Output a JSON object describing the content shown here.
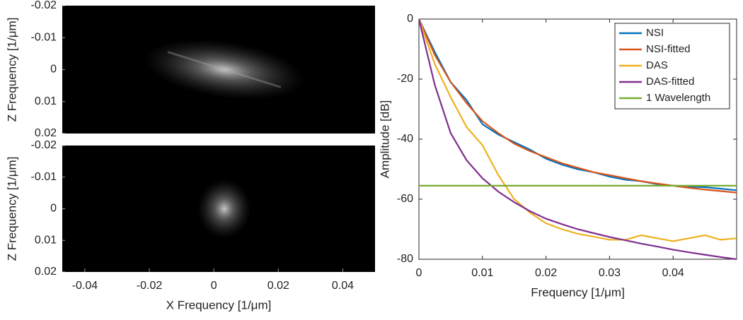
{
  "chart_data": [
    {
      "type": "image",
      "ylabel": "Z Frequency [1/μm]",
      "ylim": [
        -0.02,
        0.02
      ],
      "yticks": [
        -0.02,
        -0.01,
        0,
        0.01,
        0.02
      ]
    },
    {
      "type": "image",
      "ylabel": "Z Frequency [1/μm]",
      "ylim": [
        -0.02,
        0.02
      ],
      "yticks": [
        -0.02,
        -0.01,
        0,
        0.01,
        0.02
      ],
      "xlabel": "X Frequency [1/μm]",
      "xlim": [
        -0.047,
        0.05
      ],
      "xticks": [
        -0.04,
        -0.02,
        0,
        0.02,
        0.04
      ]
    },
    {
      "type": "line",
      "xlabel": "Frequency [1/μm]",
      "ylabel": "Amplitude [dB]",
      "xlim": [
        0,
        0.05
      ],
      "xticks": [
        0,
        0.01,
        0.02,
        0.03,
        0.04
      ],
      "ylim": [
        -80,
        0
      ],
      "yticks": [
        0,
        -20,
        -40,
        -60,
        -80
      ],
      "legend": "top-right",
      "x": [
        0,
        0.0025,
        0.005,
        0.0075,
        0.01,
        0.0125,
        0.015,
        0.0175,
        0.02,
        0.0225,
        0.025,
        0.0275,
        0.03,
        0.0325,
        0.035,
        0.0375,
        0.04,
        0.0425,
        0.045,
        0.0475,
        0.05
      ],
      "series": [
        {
          "name": "NSI",
          "color": "#0072BD",
          "values": [
            0,
            -11,
            -21,
            -27,
            -35,
            -38.5,
            -41,
            -43.5,
            -46.5,
            -48.5,
            -50,
            -51,
            -52.5,
            -53.5,
            -54,
            -55,
            -55.5,
            -55.8,
            -56,
            -56.5,
            -57
          ]
        },
        {
          "name": "NSI-fitted",
          "color": "#D95319",
          "values": [
            0,
            -12,
            -21,
            -28,
            -34,
            -38,
            -41.5,
            -44,
            -46,
            -48,
            -49.5,
            -51,
            -52,
            -53,
            -54,
            -54.8,
            -55.5,
            -56.2,
            -56.8,
            -57.3,
            -57.8
          ]
        },
        {
          "name": "DAS",
          "color": "#EDB120",
          "values": [
            0,
            -15,
            -26,
            -36,
            -42,
            -52,
            -60,
            -64.5,
            -68,
            -70,
            -71.5,
            -72.5,
            -73.5,
            -73.5,
            -72,
            -73,
            -74,
            -73,
            -72,
            -73.5,
            -73
          ]
        },
        {
          "name": "DAS-fitted",
          "color": "#7E2F8E",
          "values": [
            0,
            -22,
            -38,
            -47,
            -53,
            -57.5,
            -61,
            -64,
            -66.5,
            -68.3,
            -70,
            -71.3,
            -72.6,
            -73.7,
            -74.8,
            -75.8,
            -76.8,
            -77.7,
            -78.5,
            -79.3,
            -80
          ]
        },
        {
          "name": "1 Wavelength",
          "color": "#77AC30",
          "values": [
            -55.5,
            -55.5,
            -55.5,
            -55.5,
            -55.5,
            -55.5,
            -55.5,
            -55.5,
            -55.5,
            -55.5,
            -55.5,
            -55.5,
            -55.5,
            -55.5,
            -55.5,
            -55.5,
            -55.5,
            -55.5,
            -55.5,
            -55.5,
            -55.5
          ]
        }
      ]
    }
  ]
}
